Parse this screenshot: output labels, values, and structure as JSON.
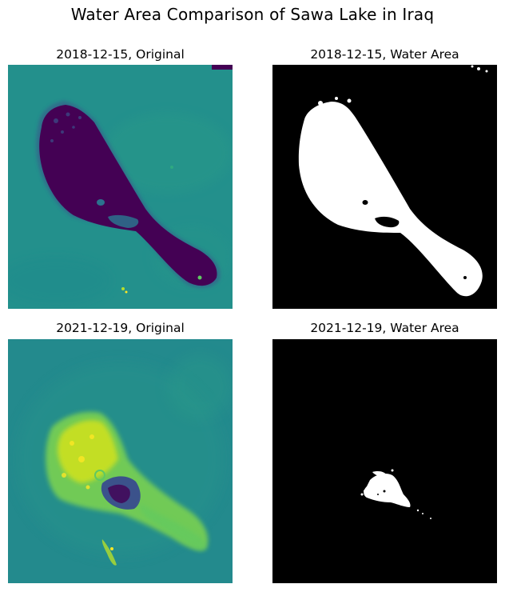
{
  "figure": {
    "title": "Water Area Comparison of Sawa Lake in Iraq"
  },
  "panels": [
    {
      "title": "2018-12-15, Original"
    },
    {
      "title": "2018-12-15, Water Area"
    },
    {
      "title": "2021-12-19, Original"
    },
    {
      "title": "2021-12-19, Water Area"
    }
  ],
  "colors": {
    "viridis_dark": "#440154",
    "viridis_mid": "#21918c",
    "viridis_light": "#fde725",
    "mask_water": "#ffffff",
    "mask_land": "#000000"
  }
}
